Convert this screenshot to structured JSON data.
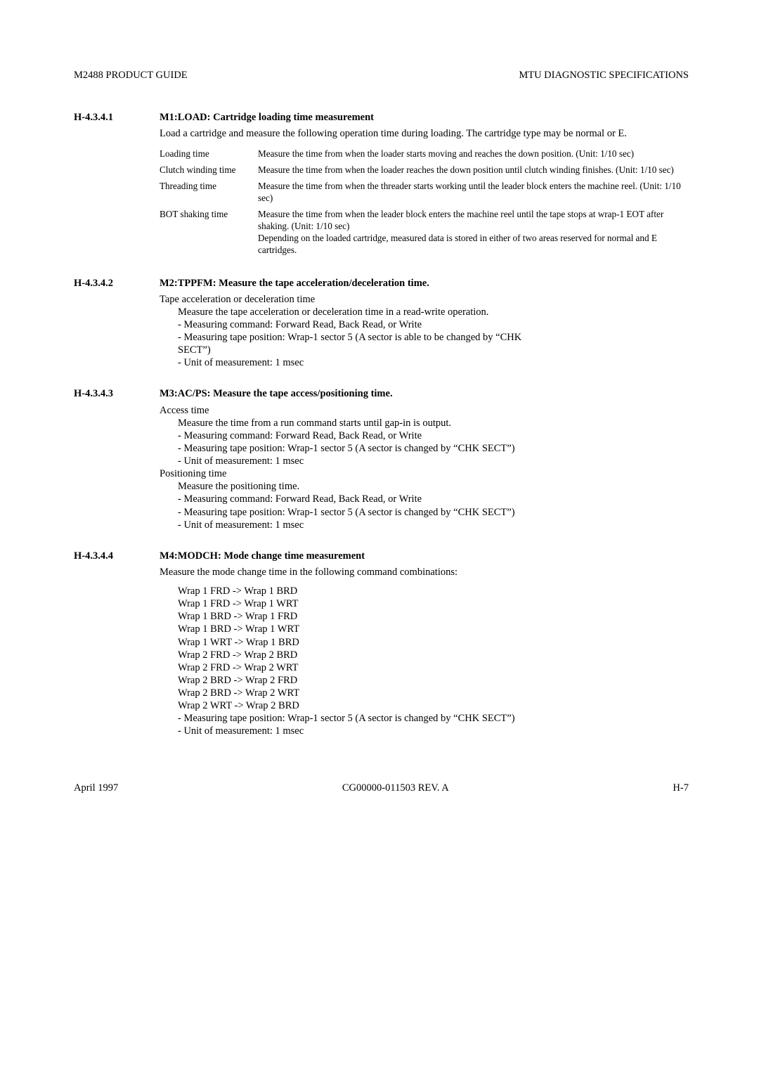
{
  "header": {
    "left": "M2488 PRODUCT GUIDE",
    "right": "MTU DIAGNOSTIC SPECIFICATIONS"
  },
  "sections": {
    "s1": {
      "num": "H-4.3.4.1",
      "title": "M1:LOAD:  Cartridge loading time measurement",
      "intro": "Load a cartridge and measure the following operation time during loading.  The cartridge type may be normal or E.",
      "defs": {
        "loading": {
          "term": "Loading time",
          "text": "Measure the time from when the loader starts moving and reaches the down position.  (Unit: 1/10 sec)"
        },
        "clutch": {
          "term": "Clutch winding time",
          "text": "Measure the time from when the loader reaches the down position until clutch winding finishes.  (Unit: 1/10 sec)"
        },
        "threading": {
          "term": "Threading time",
          "text": "Measure the time from when the threader starts working until the leader block enters the machine reel.  (Unit: 1/10 sec)"
        },
        "bot": {
          "term": "BOT shaking time",
          "text": "Measure the time from when the leader block enters the machine reel until the tape stops at wrap-1 EOT after shaking.  (Unit: 1/10 sec)",
          "text2": "Depending on the loaded cartridge, measured data is stored in either of two areas reserved for normal and E cartridges."
        }
      }
    },
    "s2": {
      "num": "H-4.3.4.2",
      "title": "M2:TPPFM:  Measure the tape acceleration/deceleration time.",
      "line1": "Tape acceleration or deceleration time",
      "line2": "Measure the tape acceleration or deceleration time in a read-write operation.",
      "b1": "-  Measuring command:  Forward Read, Back Read, or Write",
      "b2a": "-  Measuring tape position:  Wrap-1 sector 5 (A sector is able to be changed by “CHK",
      "b2b": "SECT”)",
      "b3": "-  Unit of measurement:  1 msec"
    },
    "s3": {
      "num": "H-4.3.4.3",
      "title": "M3:AC/PS:  Measure the tape access/positioning time.",
      "a_head": "Access time",
      "a_line": "Measure the time from a run command starts until gap-in is output.",
      "a_b1": "-  Measuring command:  Forward Read, Back Read, or Write",
      "a_b2": "-  Measuring tape position:  Wrap-1 sector 5 (A sector is changed by “CHK SECT”)",
      "a_b3": "-  Unit of measurement:  1 msec",
      "p_head": "Positioning time",
      "p_line": "Measure the positioning time.",
      "p_b1": "-  Measuring command:  Forward Read, Back Read, or Write",
      "p_b2": "-  Measuring tape position:  Wrap-1 sector 5 (A sector is changed by “CHK SECT”)",
      "p_b3": "-  Unit of measurement:  1 msec"
    },
    "s4": {
      "num": "H-4.3.4.4",
      "title": "M4:MODCH:  Mode change time measurement",
      "intro": "Measure the mode change time in the following command combinations:",
      "w1": "Wrap 1 FRD -> Wrap 1 BRD",
      "w2": "Wrap 1 FRD -> Wrap 1 WRT",
      "w3": "Wrap 1 BRD -> Wrap 1 FRD",
      "w4": "Wrap 1 BRD -> Wrap 1 WRT",
      "w5": "Wrap 1 WRT -> Wrap 1 BRD",
      "w6": "Wrap 2 FRD -> Wrap 2 BRD",
      "w7": "Wrap 2 FRD -> Wrap 2 WRT",
      "w8": "Wrap 2 BRD -> Wrap 2 FRD",
      "w9": "Wrap 2 BRD -> Wrap 2 WRT",
      "w10": "Wrap 2 WRT -> Wrap 2 BRD",
      "b1": "-  Measuring tape position:  Wrap-1 sector 5 (A sector is changed by “CHK SECT”)",
      "b2": "-  Unit of measurement:  1 msec"
    }
  },
  "footer": {
    "left": "April 1997",
    "center": "CG00000-011503 REV. A",
    "right": "H-7"
  }
}
